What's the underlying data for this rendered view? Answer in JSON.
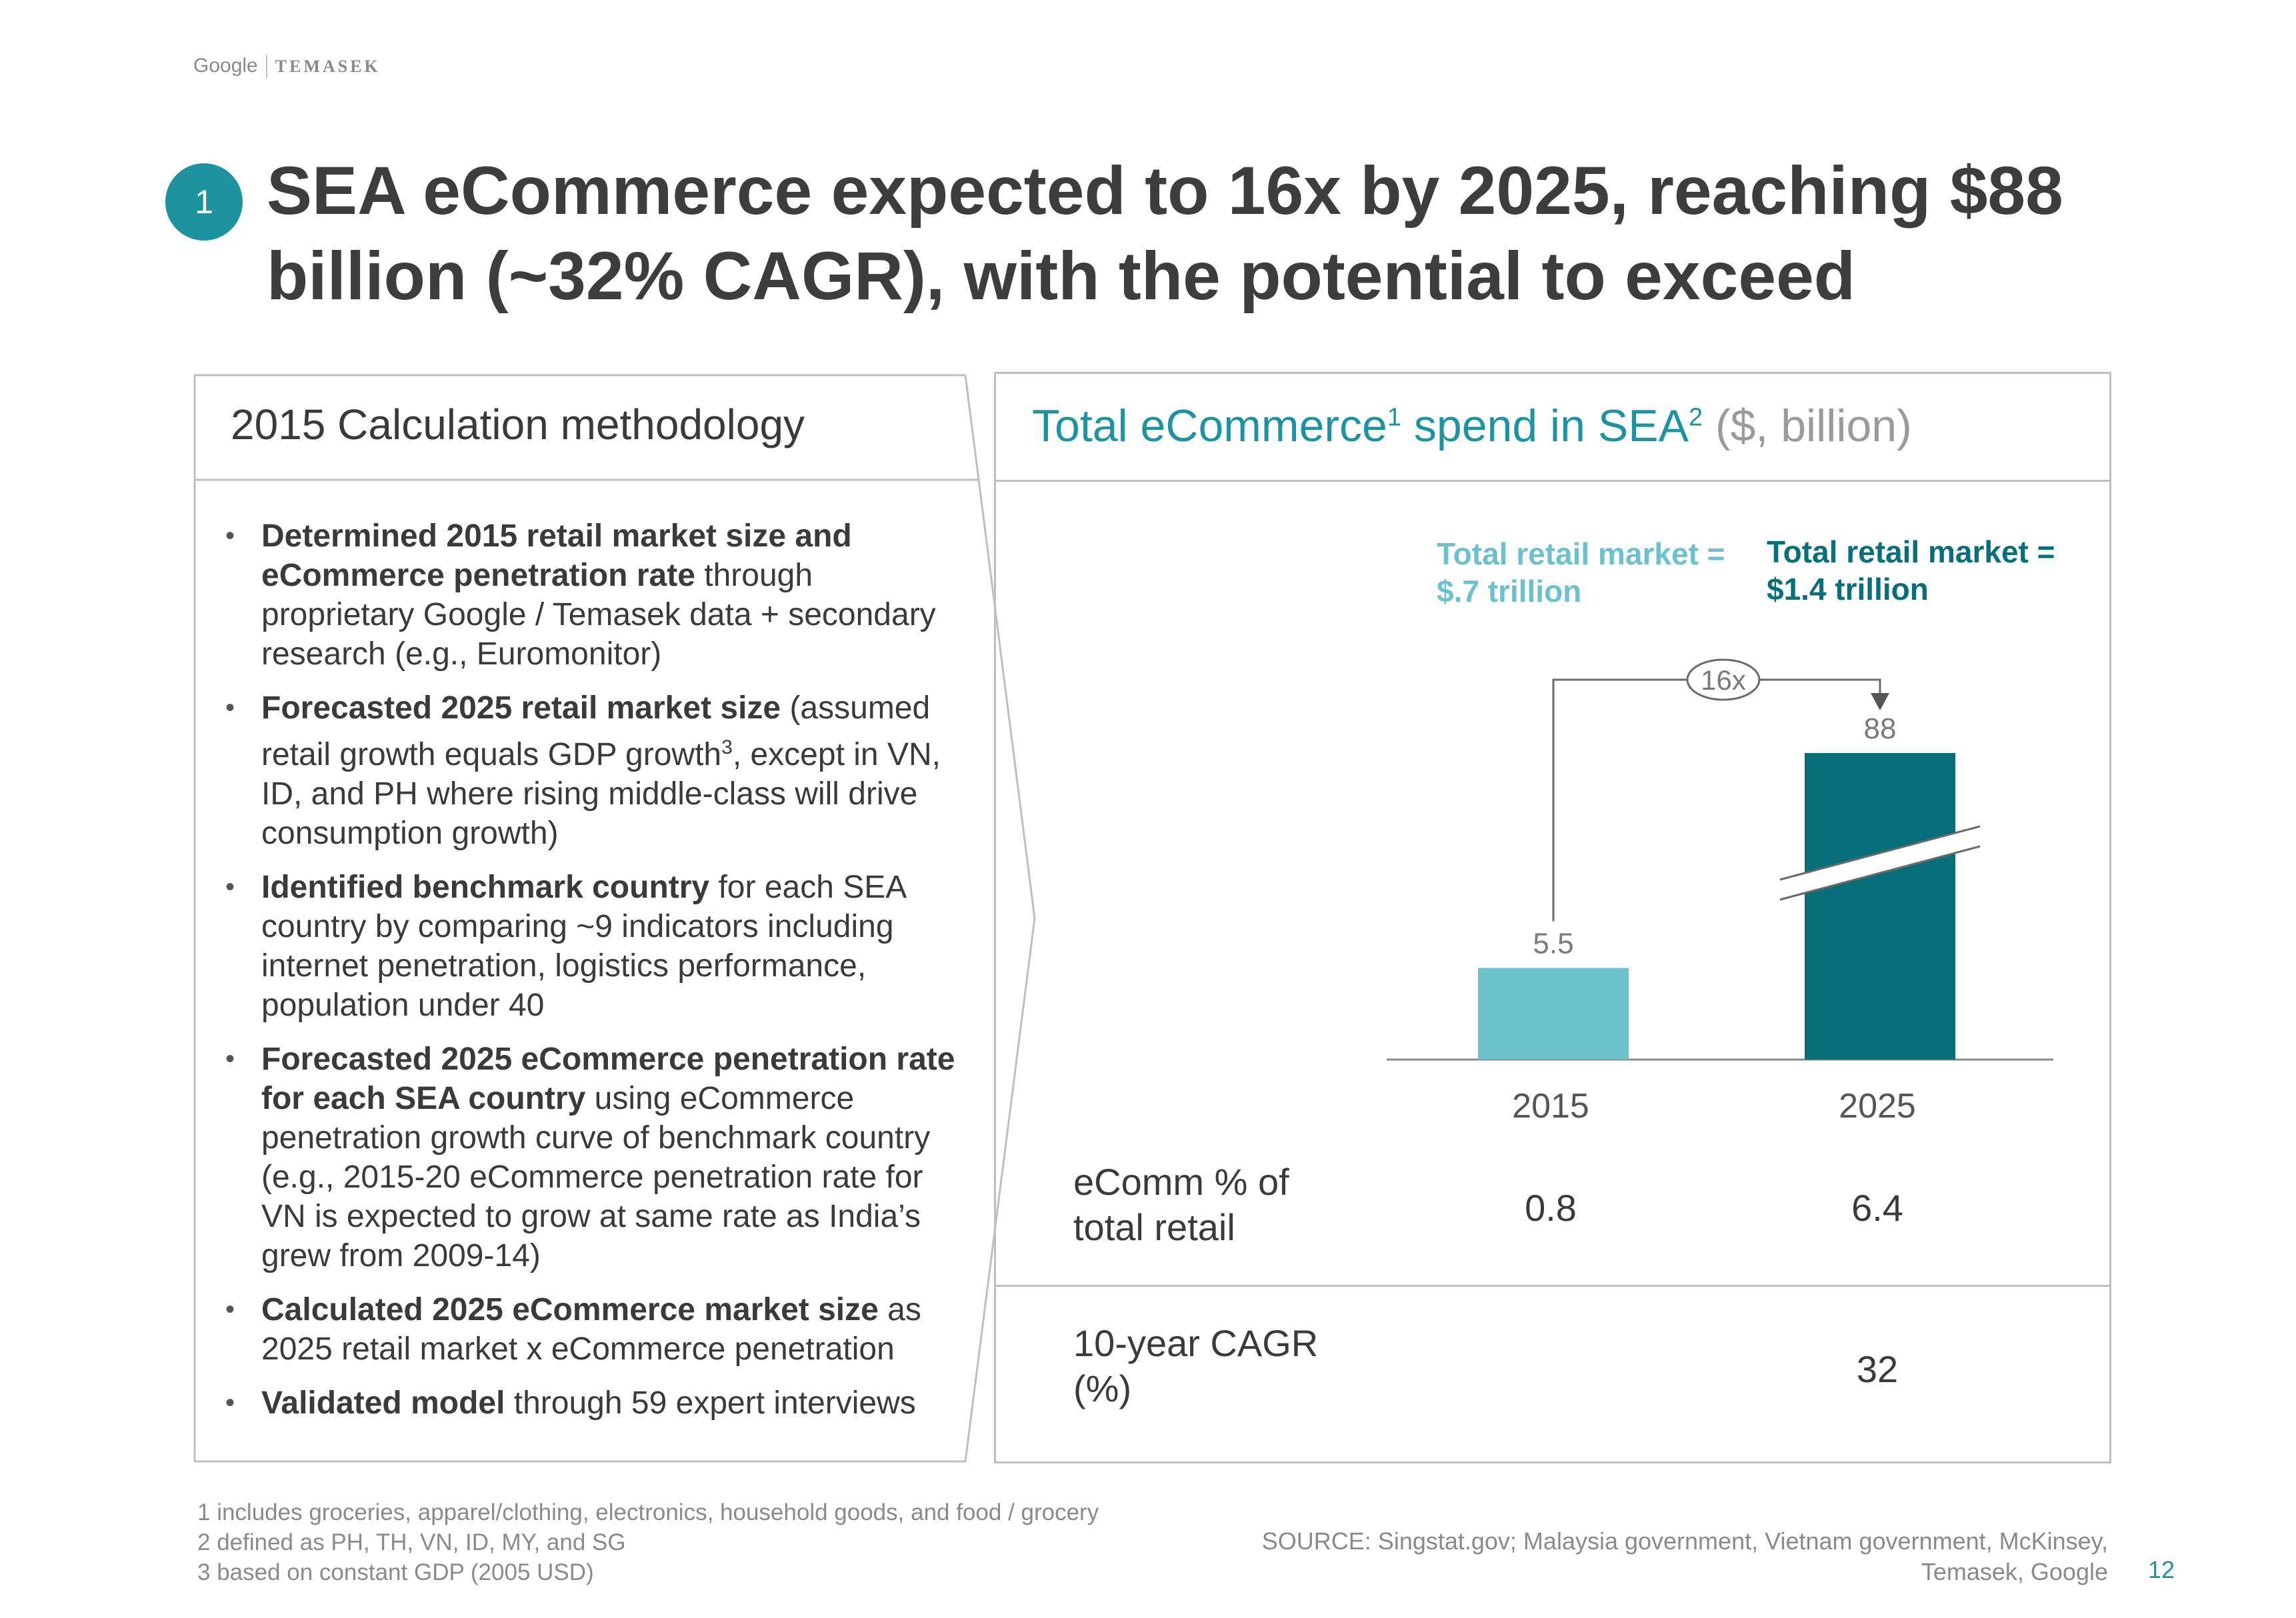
{
  "logo": {
    "google": "Google",
    "temasek": "TEMASEK"
  },
  "slide_number_badge": "1",
  "title": "SEA eCommerce expected to 16x by 2025, reaching $88 billion (~32% CAGR), with the potential to exceed",
  "left_panel": {
    "heading": "2015 Calculation methodology",
    "bullets": [
      {
        "bold": "Determined 2015 retail market size and eCommerce penetration rate",
        "rest": " through proprietary Google / Temasek data + secondary research (e.g., Euromonitor)"
      },
      {
        "bold": "Forecasted 2025 retail market size",
        "rest": " (assumed retail growth equals GDP growth",
        "sup": "3",
        "rest2": ", except in VN, ID, and PH where rising middle-class will drive consumption growth)"
      },
      {
        "bold": "Identified benchmark country",
        "rest": " for each SEA country by comparing ~9 indicators including internet penetration, logistics performance, population under 40"
      },
      {
        "bold": "Forecasted 2025 eCommerce penetration rate for each SEA country",
        "rest": " using eCommerce penetration growth curve of benchmark country (e.g., 2015-20 eCommerce penetration rate for VN is expected to grow at same rate as India’s grew from 2009-14)"
      },
      {
        "bold": "Calculated 2025 eCommerce market size",
        "rest": " as 2025 retail market x eCommerce penetration"
      },
      {
        "bold": "Validated model",
        "rest": " through 59 expert interviews"
      }
    ]
  },
  "right_panel": {
    "heading_part1": "Total eCommerce",
    "heading_sup1": "1",
    "heading_part2": " spend in SEA",
    "heading_sup2": "2",
    "heading_part3": " ($, billion)",
    "annotation_2015_line1": "Total retail market =",
    "annotation_2015_line2": "$.7 trillion",
    "annotation_2025_line1": "Total retail market =",
    "annotation_2025_line2": "$1.4 trillion",
    "growth_label": "16x",
    "row1_label": "eComm % of total retail",
    "row1_values": [
      "0.8",
      "6.4"
    ],
    "row2_label": "10-year CAGR (%)",
    "row2_values": [
      "",
      "32"
    ]
  },
  "chart_data": {
    "type": "bar",
    "categories": [
      "2015",
      "2025"
    ],
    "values": [
      5.5,
      88
    ],
    "value_labels": [
      "5.5",
      "88"
    ],
    "axis_break": true,
    "colors": [
      "#6cc1cc",
      "#066f7a"
    ],
    "grid": false
  },
  "footnotes": [
    "1 includes groceries, apparel/clothing, electronics, household goods, and food / grocery",
    "2 defined as PH, TH, VN, ID, MY, and SG",
    "3 based on constant GDP (2005 USD)"
  ],
  "source": "SOURCE: Singstat.gov; Malaysia government, Vietnam government, McKinsey, Temasek, Google",
  "page_number": "12"
}
